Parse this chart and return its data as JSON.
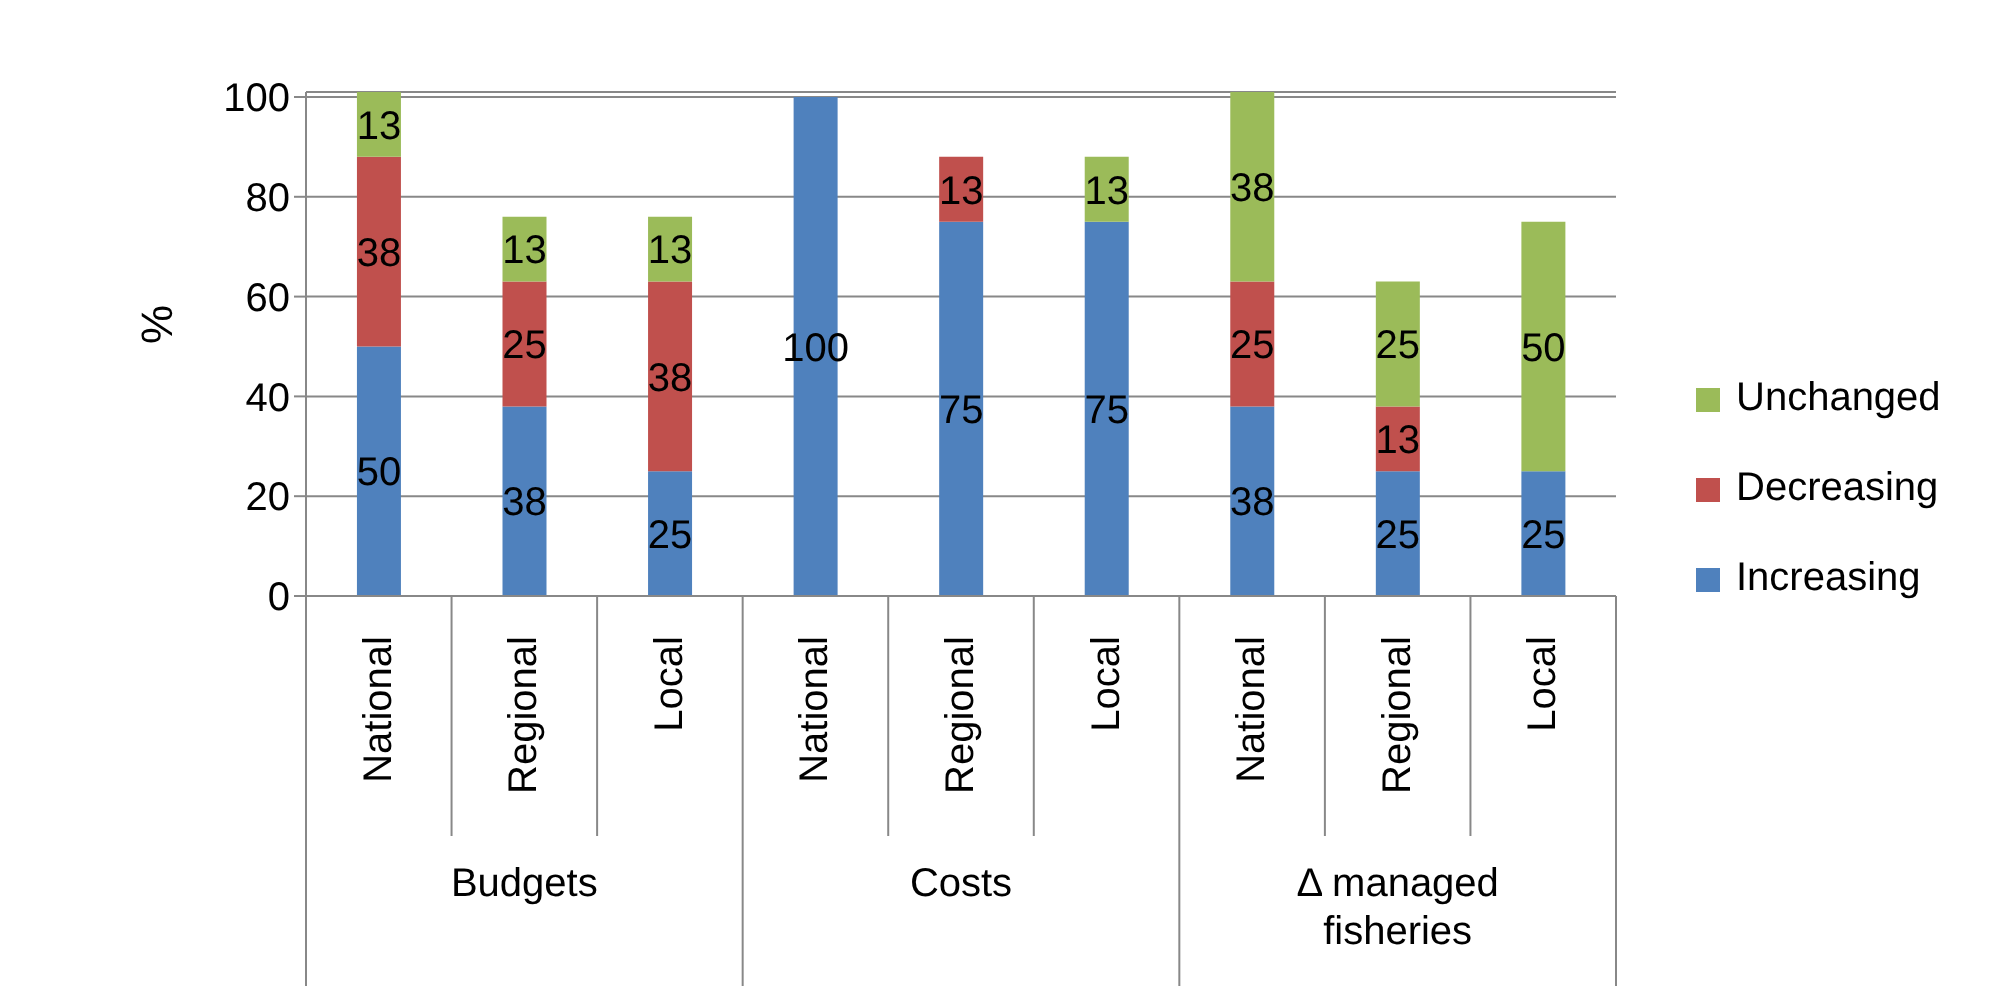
{
  "chart_data": {
    "type": "bar",
    "stacked": true,
    "ylabel": "%",
    "categories": [
      "National",
      "Regional",
      "Local",
      "National",
      "Regional",
      "Local",
      "National",
      "Regional",
      "Local"
    ],
    "annotations": [
      "Budgets",
      "Costs",
      "Δ managed fisheries"
    ],
    "series": [
      {
        "name": "Increasing",
        "color": "#4f81bd",
        "values": [
          50,
          38,
          25,
          100,
          75,
          75,
          38,
          25,
          25
        ]
      },
      {
        "name": "Decreasing",
        "color": "#c0504d",
        "values": [
          38,
          25,
          38,
          null,
          13,
          null,
          25,
          13,
          null
        ]
      },
      {
        "name": "Unchanged",
        "color": "#9bbb59",
        "values": [
          13,
          13,
          13,
          null,
          null,
          13,
          38,
          25,
          50
        ]
      }
    ],
    "ylim": [
      0,
      101
    ],
    "yticks": [
      0,
      20,
      40,
      60,
      80,
      100
    ],
    "grid": "y",
    "legend": "right",
    "data_labels": true
  }
}
